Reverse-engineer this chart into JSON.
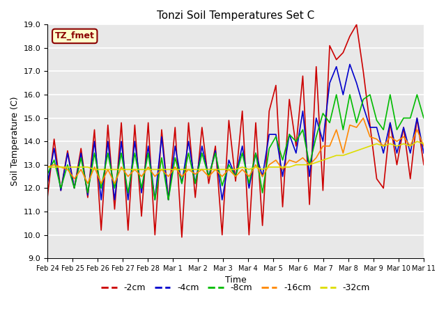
{
  "title": "Tonzi Soil Temperatures Set C",
  "xlabel": "Time",
  "ylabel": "Soil Temperature (C)",
  "ylim": [
    9.0,
    19.0
  ],
  "yticks": [
    9.0,
    10.0,
    11.0,
    12.0,
    13.0,
    14.0,
    15.0,
    16.0,
    17.0,
    18.0,
    19.0
  ],
  "xtick_labels": [
    "Feb 24",
    "Feb 25",
    "Feb 26",
    "Feb 27",
    "Feb 28",
    "Mar 1",
    "Mar 2",
    "Mar 3",
    "Mar 4",
    "Mar 5",
    "Mar 6",
    "Mar 7",
    "Mar 8",
    "Mar 9",
    "Mar 10",
    "Mar 11"
  ],
  "colors": {
    "-2cm": "#cc0000",
    "-4cm": "#0000cc",
    "-8cm": "#00bb00",
    "-16cm": "#ff8800",
    "-32cm": "#dddd00"
  },
  "legend_label": "TZ_fmet",
  "background_color": "#e8e8e8",
  "n_per_day": 2,
  "series": {
    "-2cm": [
      11.6,
      14.1,
      11.9,
      13.6,
      12.0,
      13.7,
      11.6,
      14.5,
      10.2,
      14.7,
      11.1,
      14.8,
      10.2,
      14.7,
      10.8,
      14.8,
      10.0,
      14.5,
      11.5,
      14.6,
      9.9,
      14.8,
      11.6,
      14.6,
      12.2,
      13.8,
      10.0,
      14.9,
      12.3,
      15.3,
      10.0,
      14.8,
      10.4,
      15.3,
      16.4,
      11.2,
      15.8,
      13.8,
      16.8,
      11.3,
      17.2,
      11.9,
      18.1,
      17.5,
      17.8,
      18.5,
      19.0,
      17.0,
      14.7,
      12.4,
      12.0,
      14.8,
      13.0,
      14.6,
      12.4,
      15.0,
      13.0
    ],
    "-4cm": [
      12.2,
      13.7,
      11.9,
      13.5,
      12.0,
      13.5,
      11.7,
      14.0,
      11.5,
      14.0,
      11.5,
      14.0,
      11.5,
      14.0,
      11.8,
      13.8,
      11.5,
      14.2,
      11.5,
      13.8,
      12.2,
      14.0,
      12.2,
      13.8,
      12.5,
      13.6,
      11.5,
      13.2,
      12.5,
      13.8,
      12.0,
      13.5,
      12.5,
      14.3,
      14.3,
      12.5,
      14.3,
      13.5,
      15.3,
      12.5,
      15.0,
      14.0,
      16.5,
      17.2,
      16.0,
      17.3,
      16.5,
      15.5,
      14.6,
      14.6,
      13.5,
      14.8,
      13.5,
      14.6,
      13.5,
      15.0,
      13.5
    ],
    "-8cm": [
      12.6,
      13.2,
      12.0,
      13.0,
      12.0,
      13.3,
      11.8,
      13.5,
      12.0,
      13.5,
      12.0,
      13.5,
      11.8,
      13.5,
      12.0,
      13.5,
      11.5,
      13.3,
      11.5,
      13.3,
      12.2,
      13.5,
      12.2,
      13.5,
      12.5,
      13.5,
      12.1,
      13.0,
      12.5,
      13.5,
      12.2,
      13.5,
      11.8,
      13.7,
      14.2,
      13.2,
      14.3,
      14.0,
      14.5,
      13.0,
      14.2,
      15.2,
      14.8,
      16.0,
      14.5,
      16.0,
      14.8,
      15.8,
      16.0,
      14.9,
      14.5,
      16.0,
      14.5,
      15.0,
      15.0,
      16.0,
      15.0
    ],
    "-16cm": [
      12.9,
      13.0,
      12.9,
      12.8,
      12.4,
      12.8,
      12.2,
      12.9,
      12.2,
      12.8,
      12.2,
      12.9,
      12.5,
      12.8,
      12.5,
      12.9,
      12.5,
      12.8,
      12.5,
      12.9,
      12.5,
      12.8,
      12.6,
      12.8,
      12.5,
      12.8,
      12.5,
      12.8,
      12.5,
      12.8,
      12.5,
      13.0,
      12.5,
      13.0,
      13.2,
      12.8,
      13.2,
      13.1,
      13.3,
      13.0,
      13.3,
      13.8,
      13.8,
      14.5,
      13.5,
      14.7,
      14.6,
      15.0,
      14.2,
      14.1,
      13.8,
      14.2,
      14.0,
      14.2,
      13.8,
      14.5,
      13.8
    ],
    "-32cm": [
      12.9,
      12.9,
      12.9,
      12.9,
      12.9,
      12.9,
      12.9,
      12.8,
      12.8,
      12.8,
      12.8,
      12.8,
      12.8,
      12.8,
      12.8,
      12.8,
      12.8,
      12.8,
      12.8,
      12.8,
      12.8,
      12.8,
      12.8,
      12.8,
      12.8,
      12.8,
      12.8,
      12.8,
      12.8,
      12.9,
      12.8,
      12.9,
      12.8,
      12.9,
      12.9,
      12.9,
      12.9,
      13.0,
      13.0,
      13.0,
      13.1,
      13.2,
      13.3,
      13.4,
      13.4,
      13.5,
      13.6,
      13.7,
      13.8,
      13.9,
      13.8,
      13.9,
      13.8,
      13.9,
      13.8,
      14.0,
      13.9
    ]
  }
}
